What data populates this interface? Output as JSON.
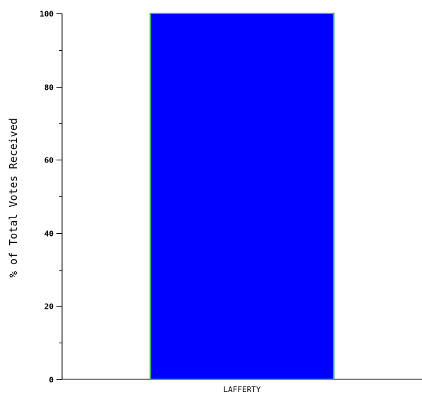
{
  "chart_data": {
    "type": "bar",
    "title": "",
    "xlabel": "",
    "ylabel": "% of Total Votes Received",
    "categories": [
      "LAFFERTY"
    ],
    "values": [
      100
    ],
    "ylim": [
      0,
      100
    ],
    "yticks_major": [
      0,
      20,
      40,
      60,
      80,
      100
    ],
    "minor_tick_step": 10,
    "grid": false,
    "legend": "none",
    "bar_fill_color": "#0000ff",
    "bar_edge_color": "#3cb371",
    "axis_color": "#000000"
  }
}
